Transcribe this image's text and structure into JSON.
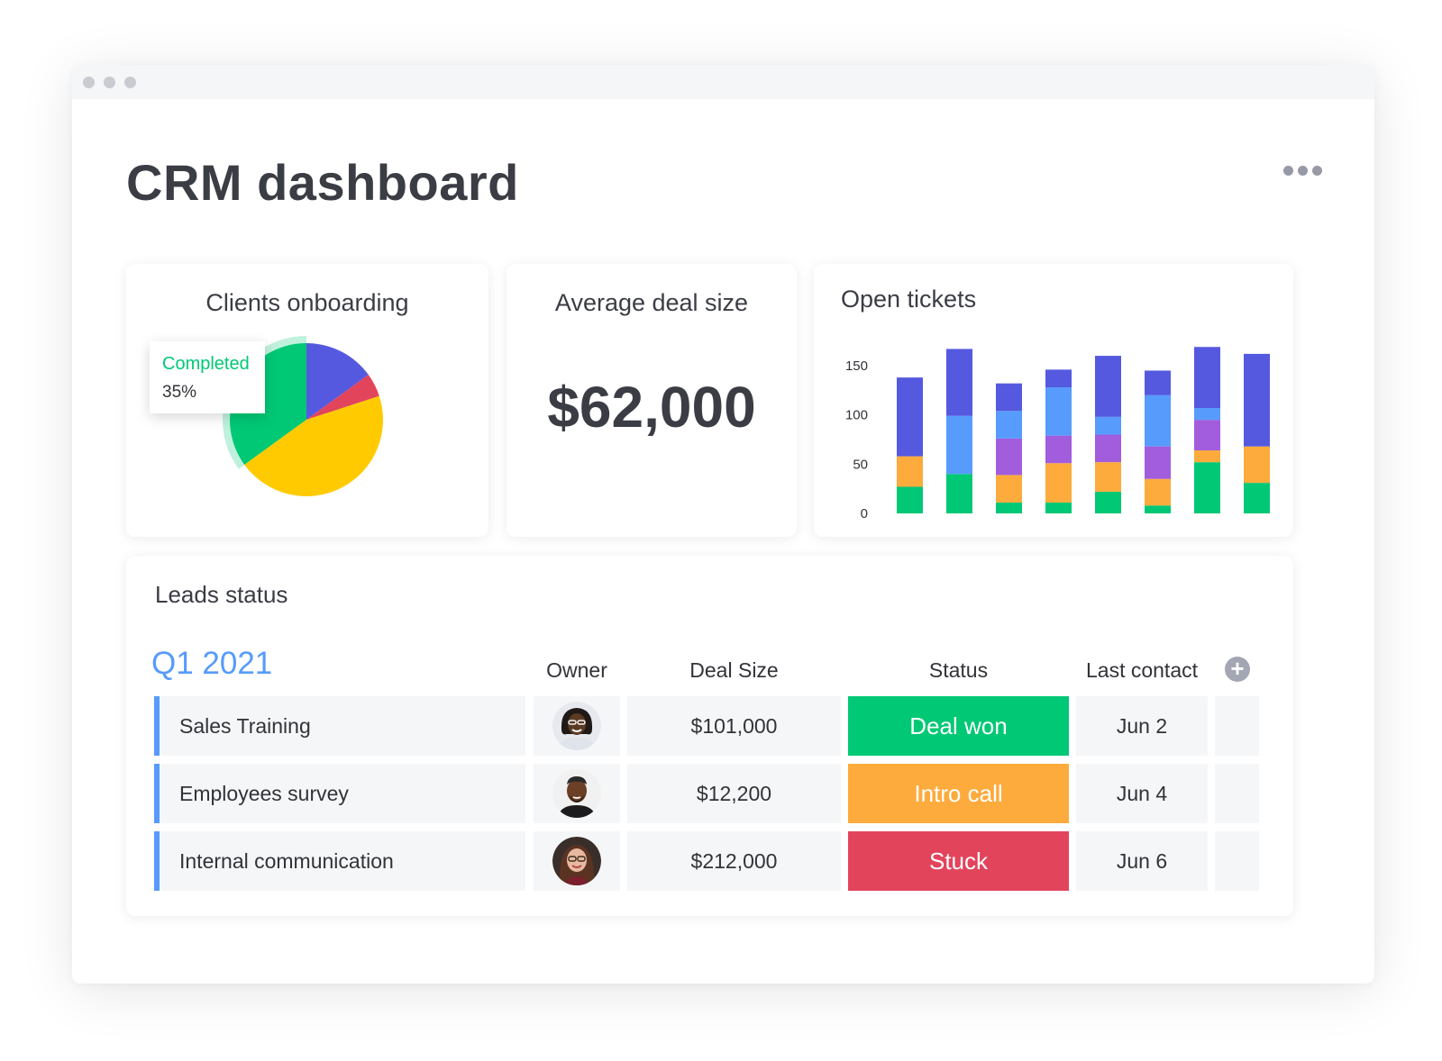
{
  "window": {
    "title": "CRM dashboard"
  },
  "onboarding": {
    "title": "Clients onboarding",
    "tooltip_label": "Completed",
    "tooltip_value": "35%"
  },
  "deal": {
    "title": "Average deal size",
    "value": "$62,000"
  },
  "tickets": {
    "title": "Open tickets"
  },
  "leads": {
    "title": "Leads status",
    "group": "Q1 2021",
    "columns": {
      "owner": "Owner",
      "deal_size": "Deal Size",
      "status": "Status",
      "last_contact": "Last contact"
    },
    "add_column_icon": "+",
    "rows": [
      {
        "name": "Sales Training",
        "deal_size": "$101,000",
        "status": "Deal won",
        "status_color": "#00c875",
        "last_contact": "Jun 2"
      },
      {
        "name": "Employees survey",
        "deal_size": "$12,200",
        "status": "Intro call",
        "status_color": "#fdab3d",
        "last_contact": "Jun 4"
      },
      {
        "name": "Internal communication",
        "deal_size": "$212,000",
        "status": "Stuck",
        "status_color": "#e2445c",
        "last_contact": "Jun 6"
      }
    ]
  },
  "colors": {
    "green": "#00c875",
    "yellow": "#ffcb00",
    "red": "#e2445c",
    "indigo": "#5559df",
    "blue": "#579bfc",
    "purple": "#a25ddc",
    "orange": "#fdab3d"
  },
  "chart_data": [
    {
      "type": "pie",
      "title": "Clients onboarding",
      "slices": [
        {
          "label": "Completed",
          "value": 35,
          "color": "#00c875"
        },
        {
          "label": "",
          "value": 15,
          "color": "#5559df"
        },
        {
          "label": "",
          "value": 5,
          "color": "#e2445c"
        },
        {
          "label": "",
          "value": 45,
          "color": "#ffcb00"
        }
      ],
      "legend": "tooltip-left"
    },
    {
      "type": "bar",
      "stacked": true,
      "title": "Open tickets",
      "yticks": [
        0,
        50,
        100,
        150
      ],
      "ylim": [
        0,
        170
      ],
      "categories": [
        "1",
        "2",
        "3",
        "4",
        "5",
        "6",
        "7",
        "8"
      ],
      "series": [
        {
          "color": "#00c875",
          "values": [
            27,
            40,
            11,
            11,
            22,
            8,
            52,
            31
          ]
        },
        {
          "color": "#fdab3d",
          "values": [
            31,
            0,
            28,
            40,
            30,
            27,
            12,
            37
          ]
        },
        {
          "color": "#a25ddc",
          "values": [
            0,
            0,
            37,
            28,
            28,
            33,
            31,
            0
          ]
        },
        {
          "color": "#579bfc",
          "values": [
            0,
            59,
            28,
            49,
            18,
            52,
            12,
            0
          ]
        },
        {
          "color": "#5559df",
          "values": [
            80,
            68,
            28,
            18,
            62,
            25,
            62,
            94
          ]
        }
      ],
      "grid": false
    }
  ]
}
